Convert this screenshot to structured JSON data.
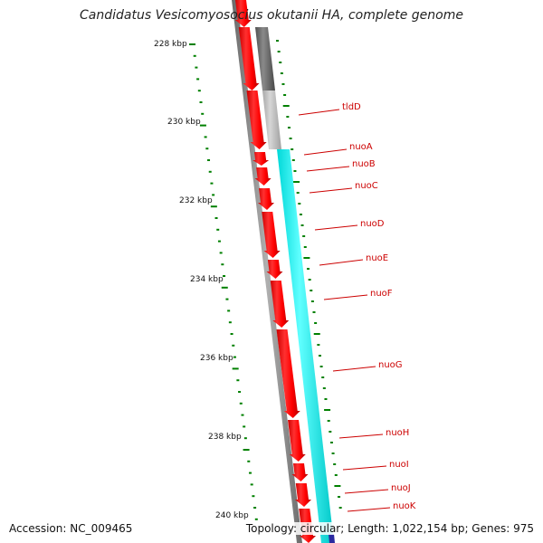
{
  "title": "Candidatus Vesicomyosocius okutanii HA, complete genome",
  "footer": {
    "accession": "Accession: NC_009465",
    "stats": "Topology: circular; Length: 1,022,154 bp; Genes: 975"
  },
  "axis": {
    "unit": "kbp",
    "ticks": [
      "228 kbp",
      "230 kbp",
      "232 kbp",
      "234 kbp",
      "236 kbp",
      "238 kbp",
      "240 kbp"
    ]
  },
  "genes": [
    "tldD",
    "nuoA",
    "nuoB",
    "nuoC",
    "nuoD",
    "nuoE",
    "nuoF",
    "nuoG",
    "nuoH",
    "nuoI",
    "nuoJ",
    "nuoK"
  ],
  "colors": {
    "cds": "#ff0000",
    "cog_blue": "#00ffff",
    "cog_gray": "#808080",
    "backbone": "#808080",
    "tick": "#008000",
    "label": "#cc0000"
  }
}
